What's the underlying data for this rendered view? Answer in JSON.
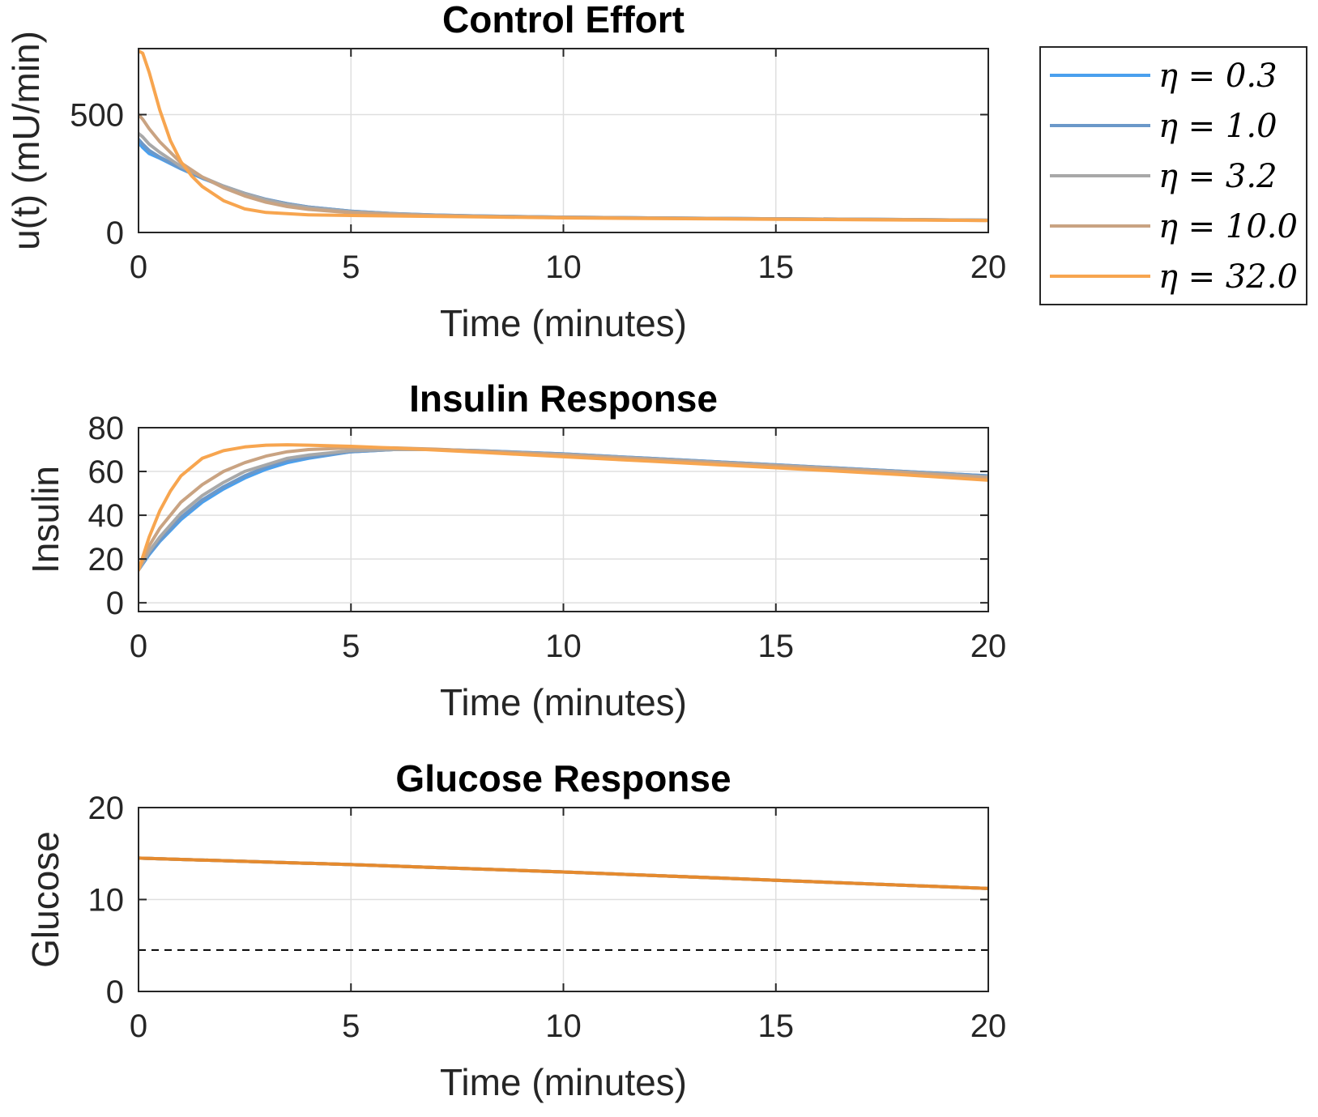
{
  "chart_data": [
    {
      "type": "line",
      "title": "Control Effort",
      "xlabel": "Time (minutes)",
      "ylabel": "u(t) (mU/min)",
      "xlim": [
        0,
        20
      ],
      "ylim": [
        0,
        780
      ],
      "xticks": [
        0,
        5,
        10,
        15,
        20
      ],
      "yticks": [
        0,
        500
      ],
      "grid": true,
      "legend_position": "outside-right",
      "series": [
        {
          "name": "η = 0.3",
          "color": "#4aa0ee",
          "x": [
            0,
            0.1,
            0.25,
            0.5,
            1,
            1.5,
            2,
            2.5,
            3,
            3.5,
            4,
            5,
            6,
            7,
            8,
            10,
            12,
            15,
            18,
            20
          ],
          "y": [
            380,
            360,
            335,
            315,
            270,
            230,
            195,
            165,
            140,
            122,
            108,
            90,
            80,
            74,
            70,
            65,
            62,
            58,
            55,
            52
          ]
        },
        {
          "name": "η = 1.0",
          "color": "#6b98c9",
          "x": [
            0,
            0.1,
            0.25,
            0.5,
            1,
            1.5,
            2,
            2.5,
            3,
            3.5,
            4,
            5,
            6,
            7,
            8,
            10,
            12,
            15,
            18,
            20
          ],
          "y": [
            395,
            375,
            348,
            320,
            272,
            232,
            197,
            166,
            141,
            122,
            108,
            90,
            80,
            74,
            70,
            65,
            62,
            58,
            55,
            52
          ]
        },
        {
          "name": "η = 3.2",
          "color": "#a8a8a8",
          "x": [
            0,
            0.1,
            0.25,
            0.5,
            1,
            1.5,
            2,
            2.5,
            3,
            3.5,
            4,
            5,
            6,
            7,
            8,
            10,
            12,
            15,
            18,
            20
          ],
          "y": [
            420,
            405,
            375,
            340,
            280,
            235,
            197,
            165,
            138,
            119,
            105,
            88,
            79,
            73,
            69,
            65,
            62,
            58,
            55,
            52
          ]
        },
        {
          "name": "η = 10.0",
          "color": "#c9a382",
          "x": [
            0,
            0.1,
            0.25,
            0.5,
            1,
            1.5,
            2,
            2.5,
            3,
            3.5,
            4,
            5,
            6,
            7,
            8,
            10,
            12,
            15,
            18,
            20
          ],
          "y": [
            500,
            480,
            440,
            385,
            295,
            235,
            190,
            155,
            128,
            110,
            98,
            84,
            76,
            71,
            68,
            64,
            61,
            57,
            54,
            51
          ]
        },
        {
          "name": "η = 32.0",
          "color": "#f7a54f",
          "x": [
            0,
            0.1,
            0.25,
            0.5,
            0.75,
            1,
            1.25,
            1.5,
            2,
            2.5,
            3,
            4,
            5,
            6,
            8,
            10,
            12,
            15,
            18,
            20
          ],
          "y": [
            770,
            760,
            680,
            520,
            390,
            300,
            240,
            195,
            135,
            100,
            85,
            75,
            72,
            70,
            66,
            62,
            59,
            56,
            53,
            51
          ]
        }
      ]
    },
    {
      "type": "line",
      "title": "Insulin Response",
      "xlabel": "Time (minutes)",
      "ylabel": "Insulin",
      "xlim": [
        0,
        20
      ],
      "ylim": [
        -4,
        80
      ],
      "xticks": [
        0,
        5,
        10,
        15,
        20
      ],
      "yticks": [
        0,
        20,
        40,
        60,
        80
      ],
      "grid": true,
      "series": [
        {
          "name": "η = 0.3",
          "color": "#4aa0ee",
          "x": [
            0,
            0.25,
            0.5,
            1,
            1.5,
            2,
            2.5,
            3,
            3.5,
            4,
            5,
            6,
            7,
            8,
            10,
            12,
            15,
            18,
            20
          ],
          "y": [
            15,
            22,
            28,
            38,
            46,
            52,
            57,
            61,
            64,
            66,
            69,
            70,
            70,
            69.5,
            68,
            66,
            63,
            60,
            58
          ]
        },
        {
          "name": "η = 1.0",
          "color": "#6b98c9",
          "x": [
            0,
            0.25,
            0.5,
            1,
            1.5,
            2,
            2.5,
            3,
            3.5,
            4,
            5,
            6,
            7,
            8,
            10,
            12,
            15,
            18,
            20
          ],
          "y": [
            15,
            22.5,
            28.5,
            39,
            47,
            53,
            58,
            62,
            65,
            66.5,
            69,
            70,
            70,
            69.5,
            68,
            66,
            63,
            60,
            58
          ]
        },
        {
          "name": "η = 3.2",
          "color": "#a8a8a8",
          "x": [
            0,
            0.25,
            0.5,
            1,
            1.5,
            2,
            2.5,
            3,
            3.5,
            4,
            5,
            6,
            7,
            8,
            10,
            12,
            15,
            18,
            20
          ],
          "y": [
            15,
            23.5,
            30,
            41,
            49,
            55,
            60,
            63,
            66,
            67.5,
            69.5,
            70,
            70,
            69.3,
            67.8,
            65.8,
            62.8,
            59.8,
            57.5
          ]
        },
        {
          "name": "η = 10.0",
          "color": "#c9a382",
          "x": [
            0,
            0.25,
            0.5,
            1,
            1.5,
            2,
            2.5,
            3,
            3.5,
            4,
            5,
            6,
            7,
            8,
            10,
            12,
            15,
            18,
            20
          ],
          "y": [
            15,
            26,
            34,
            46,
            54,
            60,
            64,
            67,
            69,
            70,
            70.8,
            70.8,
            70.2,
            69.3,
            67.5,
            65.5,
            62.5,
            59.5,
            57
          ]
        },
        {
          "name": "η = 32.0",
          "color": "#f7a54f",
          "x": [
            0,
            0.25,
            0.5,
            0.75,
            1,
            1.5,
            2,
            2.5,
            3,
            3.5,
            4,
            5,
            6,
            7,
            8,
            10,
            12,
            15,
            18,
            20
          ],
          "y": [
            15,
            30,
            42,
            51,
            58,
            66,
            69.5,
            71.2,
            72,
            72.2,
            72,
            71.5,
            70.7,
            69.8,
            68.8,
            66.7,
            64.7,
            61.7,
            58.5,
            56
          ]
        }
      ]
    },
    {
      "type": "line",
      "title": "Glucose Response",
      "xlabel": "Time (minutes)",
      "ylabel": "Glucose",
      "xlim": [
        0,
        20
      ],
      "ylim": [
        0,
        20
      ],
      "xticks": [
        0,
        5,
        10,
        15,
        20
      ],
      "yticks": [
        0,
        10,
        20
      ],
      "grid": true,
      "reference_line": {
        "y": 4.5,
        "style": "dashed",
        "color": "#000000"
      },
      "series": [
        {
          "name": "η = 0.3",
          "color": "#4aa0ee",
          "x": [
            0,
            5,
            10,
            15,
            20
          ],
          "y": [
            14.5,
            13.8,
            13.0,
            12.1,
            11.2
          ]
        },
        {
          "name": "η = 1.0",
          "color": "#6b98c9",
          "x": [
            0,
            5,
            10,
            15,
            20
          ],
          "y": [
            14.5,
            13.8,
            13.0,
            12.1,
            11.2
          ]
        },
        {
          "name": "η = 3.2",
          "color": "#a8a8a8",
          "x": [
            0,
            5,
            10,
            15,
            20
          ],
          "y": [
            14.5,
            13.8,
            13.0,
            12.1,
            11.2
          ]
        },
        {
          "name": "η = 10.0",
          "color": "#c9a382",
          "x": [
            0,
            5,
            10,
            15,
            20
          ],
          "y": [
            14.5,
            13.8,
            13.0,
            12.1,
            11.2
          ]
        },
        {
          "name": "η = 32.0",
          "color": "#e58a2e",
          "x": [
            0,
            5,
            10,
            15,
            20
          ],
          "y": [
            14.5,
            13.8,
            13.0,
            12.1,
            11.2
          ]
        }
      ]
    }
  ],
  "legend": {
    "entries": [
      {
        "label": "η = 0.3",
        "color": "#4aa0ee"
      },
      {
        "label": "η = 1.0",
        "color": "#6b98c9"
      },
      {
        "label": "η = 3.2",
        "color": "#a8a8a8"
      },
      {
        "label": "η = 10.0",
        "color": "#c9a382"
      },
      {
        "label": "η = 32.0",
        "color": "#f7a54f"
      }
    ]
  }
}
